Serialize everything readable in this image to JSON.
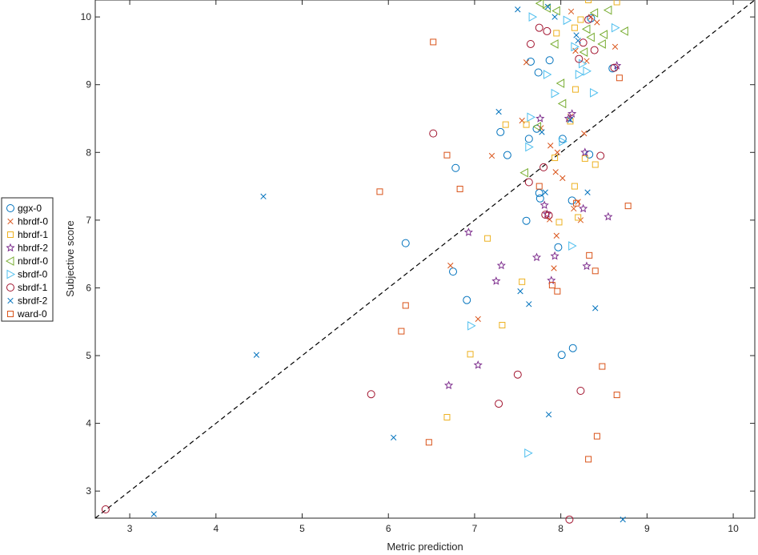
{
  "chart_data": {
    "type": "scatter",
    "xlabel": "Metric prediction",
    "ylabel": "Subjective score",
    "xlim": [
      2.6,
      10.25
    ],
    "ylim": [
      2.6,
      10.25
    ],
    "xticks": [
      3,
      4,
      5,
      6,
      7,
      8,
      9,
      10
    ],
    "yticks": [
      3,
      4,
      5,
      6,
      7,
      8,
      9,
      10
    ],
    "grid": false,
    "legend_position": "outside-left",
    "reference_line": {
      "style": "dashed",
      "color": "#000000",
      "from": [
        2.6,
        2.6
      ],
      "to": [
        10.25,
        10.25
      ]
    },
    "series": [
      {
        "name": "ggx-0",
        "marker": "circle",
        "color": "#0072BD",
        "points": [
          [
            6.2,
            6.66
          ],
          [
            6.75,
            6.24
          ],
          [
            6.78,
            7.77
          ],
          [
            6.91,
            5.82
          ],
          [
            7.3,
            8.3
          ],
          [
            7.38,
            7.96
          ],
          [
            7.6,
            6.99
          ],
          [
            7.63,
            8.2
          ],
          [
            7.65,
            9.34
          ],
          [
            7.72,
            8.35
          ],
          [
            7.74,
            9.18
          ],
          [
            7.75,
            7.4
          ],
          [
            7.76,
            7.32
          ],
          [
            7.87,
            9.36
          ],
          [
            7.97,
            6.6
          ],
          [
            8.01,
            5.01
          ],
          [
            8.02,
            8.2
          ],
          [
            8.13,
            7.29
          ],
          [
            8.14,
            5.11
          ],
          [
            8.33,
            7.97
          ],
          [
            8.35,
            9.98
          ],
          [
            8.6,
            9.24
          ]
        ]
      },
      {
        "name": "hbrdf-0",
        "marker": "x",
        "color": "#D95319",
        "points": [
          [
            6.72,
            6.33
          ],
          [
            7.04,
            5.54
          ],
          [
            7.2,
            7.95
          ],
          [
            7.55,
            8.47
          ],
          [
            7.6,
            9.33
          ],
          [
            7.77,
            8.36
          ],
          [
            7.87,
            7.01
          ],
          [
            7.88,
            8.1
          ],
          [
            7.92,
            6.29
          ],
          [
            7.94,
            7.71
          ],
          [
            7.95,
            6.77
          ],
          [
            7.96,
            8.0
          ],
          [
            8.02,
            7.62
          ],
          [
            8.11,
            8.53
          ],
          [
            8.12,
            10.08
          ],
          [
            8.15,
            7.17
          ],
          [
            8.17,
            9.5
          ],
          [
            8.2,
            7.27
          ],
          [
            8.23,
            7.0
          ],
          [
            8.27,
            8.28
          ],
          [
            8.3,
            9.35
          ],
          [
            8.35,
            10.0
          ],
          [
            8.42,
            9.92
          ],
          [
            8.63,
            9.56
          ]
        ]
      },
      {
        "name": "hbrdf-1",
        "marker": "square",
        "color": "#EDB120",
        "points": [
          [
            6.68,
            4.09
          ],
          [
            6.95,
            5.02
          ],
          [
            7.15,
            6.73
          ],
          [
            7.32,
            5.45
          ],
          [
            7.36,
            8.41
          ],
          [
            7.55,
            6.09
          ],
          [
            7.6,
            8.41
          ],
          [
            7.93,
            7.92
          ],
          [
            7.95,
            9.76
          ],
          [
            7.98,
            6.97
          ],
          [
            8.11,
            8.46
          ],
          [
            8.16,
            9.84
          ],
          [
            8.16,
            7.5
          ],
          [
            8.17,
            8.93
          ],
          [
            8.2,
            7.04
          ],
          [
            8.23,
            9.96
          ],
          [
            8.28,
            7.91
          ],
          [
            8.32,
            10.25
          ],
          [
            8.4,
            7.82
          ],
          [
            8.65,
            10.22
          ]
        ]
      },
      {
        "name": "hbrdf-2",
        "marker": "star",
        "color": "#7E2F8E",
        "points": [
          [
            6.7,
            4.56
          ],
          [
            6.93,
            6.82
          ],
          [
            7.04,
            4.86
          ],
          [
            7.25,
            6.1
          ],
          [
            7.31,
            6.33
          ],
          [
            7.72,
            6.45
          ],
          [
            7.76,
            8.5
          ],
          [
            7.81,
            7.22
          ],
          [
            7.84,
            7.09
          ],
          [
            7.89,
            6.11
          ],
          [
            7.93,
            6.47
          ],
          [
            8.09,
            8.5
          ],
          [
            8.13,
            8.57
          ],
          [
            8.26,
            7.17
          ],
          [
            8.28,
            8.0
          ],
          [
            8.3,
            6.32
          ],
          [
            8.55,
            7.05
          ],
          [
            8.65,
            9.28
          ]
        ]
      },
      {
        "name": "nbrdf-0",
        "marker": "triangle-left",
        "color": "#77AC30",
        "points": [
          [
            7.58,
            7.7
          ],
          [
            7.73,
            8.38
          ],
          [
            7.76,
            10.2
          ],
          [
            7.84,
            10.13
          ],
          [
            7.93,
            9.6
          ],
          [
            7.95,
            10.09
          ],
          [
            8.0,
            9.02
          ],
          [
            8.02,
            8.72
          ],
          [
            8.27,
            9.48
          ],
          [
            8.3,
            9.82
          ],
          [
            8.35,
            9.7
          ],
          [
            8.39,
            10.06
          ],
          [
            8.48,
            9.6
          ],
          [
            8.5,
            9.74
          ],
          [
            8.55,
            10.1
          ],
          [
            8.74,
            9.79
          ]
        ]
      },
      {
        "name": "sbrdf-0",
        "marker": "triangle-right",
        "color": "#4DBEEE",
        "points": [
          [
            6.96,
            5.44
          ],
          [
            7.62,
            3.56
          ],
          [
            7.63,
            8.08
          ],
          [
            7.65,
            8.52
          ],
          [
            7.67,
            10.0
          ],
          [
            7.84,
            9.15
          ],
          [
            7.93,
            8.87
          ],
          [
            8.02,
            8.16
          ],
          [
            8.07,
            9.95
          ],
          [
            8.13,
            6.62
          ],
          [
            8.16,
            9.56
          ],
          [
            8.21,
            9.15
          ],
          [
            8.25,
            9.31
          ],
          [
            8.3,
            9.2
          ],
          [
            8.38,
            8.88
          ],
          [
            8.63,
            9.84
          ]
        ]
      },
      {
        "name": "sbrdf-1",
        "marker": "circle",
        "color": "#A2142F",
        "points": [
          [
            2.72,
            2.73
          ],
          [
            5.8,
            4.43
          ],
          [
            6.52,
            8.28
          ],
          [
            7.28,
            4.29
          ],
          [
            7.5,
            4.72
          ],
          [
            7.63,
            7.56
          ],
          [
            7.65,
            9.6
          ],
          [
            7.75,
            9.84
          ],
          [
            7.8,
            7.78
          ],
          [
            7.82,
            7.08
          ],
          [
            7.84,
            9.79
          ],
          [
            7.86,
            7.07
          ],
          [
            8.1,
            2.58
          ],
          [
            8.21,
            9.38
          ],
          [
            8.23,
            4.48
          ],
          [
            8.26,
            9.62
          ],
          [
            8.32,
            9.96
          ],
          [
            8.39,
            9.51
          ],
          [
            8.46,
            7.95
          ],
          [
            8.62,
            9.25
          ]
        ]
      },
      {
        "name": "sbrdf-2",
        "marker": "x",
        "color": "#0072BD",
        "points": [
          [
            3.28,
            2.66
          ],
          [
            4.47,
            5.01
          ],
          [
            4.55,
            7.35
          ],
          [
            6.06,
            3.79
          ],
          [
            7.28,
            8.6
          ],
          [
            7.5,
            10.11
          ],
          [
            7.53,
            5.95
          ],
          [
            7.63,
            5.76
          ],
          [
            7.78,
            8.3
          ],
          [
            7.82,
            7.41
          ],
          [
            7.85,
            10.15
          ],
          [
            7.86,
            4.13
          ],
          [
            7.93,
            10.0
          ],
          [
            8.11,
            8.48
          ],
          [
            8.18,
            9.73
          ],
          [
            8.2,
            9.65
          ],
          [
            8.31,
            7.41
          ],
          [
            8.4,
            5.7
          ],
          [
            8.72,
            2.58
          ]
        ]
      },
      {
        "name": "ward-0",
        "marker": "square",
        "color": "#D95319",
        "points": [
          [
            5.9,
            7.42
          ],
          [
            6.15,
            5.36
          ],
          [
            6.2,
            5.74
          ],
          [
            6.47,
            3.72
          ],
          [
            6.52,
            9.63
          ],
          [
            6.68,
            7.96
          ],
          [
            6.83,
            7.46
          ],
          [
            7.75,
            7.5
          ],
          [
            7.9,
            6.04
          ],
          [
            7.96,
            5.95
          ],
          [
            8.18,
            7.25
          ],
          [
            8.32,
            3.47
          ],
          [
            8.33,
            6.48
          ],
          [
            8.4,
            6.25
          ],
          [
            8.42,
            3.81
          ],
          [
            8.48,
            4.84
          ],
          [
            8.65,
            4.42
          ],
          [
            8.68,
            9.1
          ],
          [
            8.78,
            7.21
          ]
        ]
      }
    ]
  }
}
